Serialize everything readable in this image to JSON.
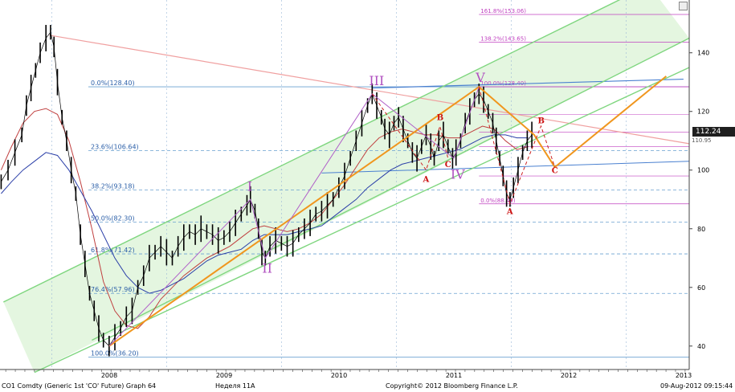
{
  "chart_data": {
    "type": "line",
    "title": "",
    "xlabel": "",
    "ylabel": "",
    "ylim": [
      32,
      158
    ],
    "xlim": [
      2007.55,
      2013.55
    ],
    "y_ticks": [
      40,
      60,
      80,
      100,
      120,
      140
    ],
    "x_tick_labels": [
      {
        "label": "2008",
        "x": 2008.0
      },
      {
        "label": "2009",
        "x": 2009.0
      },
      {
        "label": "2010",
        "x": 2010.0
      },
      {
        "label": "2011",
        "x": 2011.0
      },
      {
        "label": "2012",
        "x": 2012.0
      },
      {
        "label": "2013",
        "x": 2013.0
      }
    ],
    "price_series": [
      [
        2007.56,
        96
      ],
      [
        2007.62,
        100
      ],
      [
        2007.68,
        106
      ],
      [
        2007.74,
        112
      ],
      [
        2007.78,
        122
      ],
      [
        2007.82,
        128
      ],
      [
        2007.86,
        134
      ],
      [
        2007.9,
        140
      ],
      [
        2007.95,
        145
      ],
      [
        2007.99,
        147
      ],
      [
        2008.02,
        142
      ],
      [
        2008.05,
        130
      ],
      [
        2008.09,
        118
      ],
      [
        2008.13,
        110
      ],
      [
        2008.17,
        100
      ],
      [
        2008.21,
        92
      ],
      [
        2008.25,
        78
      ],
      [
        2008.29,
        68
      ],
      [
        2008.33,
        58
      ],
      [
        2008.37,
        52
      ],
      [
        2008.41,
        46
      ],
      [
        2008.45,
        42
      ],
      [
        2008.5,
        40
      ],
      [
        2008.55,
        43
      ],
      [
        2008.6,
        46
      ],
      [
        2008.65,
        50
      ],
      [
        2008.7,
        52
      ],
      [
        2008.75,
        60
      ],
      [
        2008.8,
        64
      ],
      [
        2008.85,
        70
      ],
      [
        2008.9,
        72
      ],
      [
        2008.95,
        74
      ],
      [
        2009.0,
        72
      ],
      [
        2009.05,
        70
      ],
      [
        2009.1,
        74
      ],
      [
        2009.15,
        77
      ],
      [
        2009.2,
        79
      ],
      [
        2009.25,
        78
      ],
      [
        2009.3,
        80
      ],
      [
        2009.35,
        79
      ],
      [
        2009.4,
        78
      ],
      [
        2009.45,
        76
      ],
      [
        2009.5,
        77
      ],
      [
        2009.55,
        79
      ],
      [
        2009.6,
        82
      ],
      [
        2009.65,
        85
      ],
      [
        2009.7,
        88
      ],
      [
        2009.73,
        90
      ],
      [
        2009.77,
        86
      ],
      [
        2009.8,
        80
      ],
      [
        2009.83,
        72
      ],
      [
        2009.86,
        70
      ],
      [
        2009.9,
        74
      ],
      [
        2009.95,
        76
      ],
      [
        2010.0,
        75
      ],
      [
        2010.05,
        74
      ],
      [
        2010.1,
        75
      ],
      [
        2010.15,
        78
      ],
      [
        2010.2,
        80
      ],
      [
        2010.25,
        82
      ],
      [
        2010.3,
        85
      ],
      [
        2010.35,
        86
      ],
      [
        2010.4,
        88
      ],
      [
        2010.45,
        90
      ],
      [
        2010.5,
        94
      ],
      [
        2010.55,
        98
      ],
      [
        2010.6,
        104
      ],
      [
        2010.65,
        110
      ],
      [
        2010.7,
        116
      ],
      [
        2010.75,
        122
      ],
      [
        2010.79,
        126
      ],
      [
        2010.83,
        122
      ],
      [
        2010.87,
        118
      ],
      [
        2010.9,
        114
      ],
      [
        2010.94,
        112
      ],
      [
        2010.98,
        116
      ],
      [
        2011.02,
        118
      ],
      [
        2011.06,
        114
      ],
      [
        2011.1,
        110
      ],
      [
        2011.14,
        106
      ],
      [
        2011.18,
        104
      ],
      [
        2011.22,
        108
      ],
      [
        2011.26,
        112
      ],
      [
        2011.3,
        108
      ],
      [
        2011.33,
        104
      ],
      [
        2011.37,
        110
      ],
      [
        2011.41,
        112
      ],
      [
        2011.45,
        108
      ],
      [
        2011.49,
        104
      ],
      [
        2011.52,
        106
      ],
      [
        2011.56,
        110
      ],
      [
        2011.6,
        116
      ],
      [
        2011.64,
        120
      ],
      [
        2011.68,
        124
      ],
      [
        2011.72,
        126
      ],
      [
        2011.76,
        124
      ],
      [
        2011.8,
        120
      ],
      [
        2011.84,
        116
      ],
      [
        2011.87,
        110
      ],
      [
        2011.9,
        104
      ],
      [
        2011.93,
        98
      ],
      [
        2011.96,
        92
      ],
      [
        2011.99,
        90
      ],
      [
        2012.02,
        94
      ],
      [
        2012.06,
        100
      ],
      [
        2012.1,
        106
      ],
      [
        2012.14,
        110
      ],
      [
        2012.18,
        112
      ]
    ],
    "ma_red": [
      [
        2007.56,
        100
      ],
      [
        2007.65,
        108
      ],
      [
        2007.75,
        116
      ],
      [
        2007.85,
        120
      ],
      [
        2007.95,
        121
      ],
      [
        2008.05,
        119
      ],
      [
        2008.15,
        110
      ],
      [
        2008.25,
        96
      ],
      [
        2008.35,
        80
      ],
      [
        2008.45,
        62
      ],
      [
        2008.55,
        52
      ],
      [
        2008.65,
        47
      ],
      [
        2008.75,
        46
      ],
      [
        2008.85,
        50
      ],
      [
        2008.95,
        56
      ],
      [
        2009.05,
        60
      ],
      [
        2009.15,
        64
      ],
      [
        2009.25,
        67
      ],
      [
        2009.35,
        70
      ],
      [
        2009.45,
        72
      ],
      [
        2009.55,
        74
      ],
      [
        2009.65,
        77
      ],
      [
        2009.75,
        80
      ],
      [
        2009.85,
        81
      ],
      [
        2009.95,
        80
      ],
      [
        2010.05,
        79
      ],
      [
        2010.15,
        80
      ],
      [
        2010.25,
        82
      ],
      [
        2010.35,
        85
      ],
      [
        2010.45,
        90
      ],
      [
        2010.55,
        95
      ],
      [
        2010.65,
        101
      ],
      [
        2010.75,
        107
      ],
      [
        2010.85,
        111
      ],
      [
        2010.95,
        113
      ],
      [
        2011.05,
        114
      ],
      [
        2011.15,
        113
      ],
      [
        2011.25,
        112
      ],
      [
        2011.35,
        112
      ],
      [
        2011.45,
        111
      ],
      [
        2011.55,
        111
      ],
      [
        2011.65,
        113
      ],
      [
        2011.75,
        115
      ],
      [
        2011.85,
        114
      ],
      [
        2011.95,
        110
      ],
      [
        2012.05,
        107
      ],
      [
        2012.15,
        108
      ]
    ],
    "ma_blue": [
      [
        2007.56,
        92
      ],
      [
        2007.65,
        96
      ],
      [
        2007.75,
        100
      ],
      [
        2007.85,
        103
      ],
      [
        2007.95,
        106
      ],
      [
        2008.05,
        105
      ],
      [
        2008.15,
        100
      ],
      [
        2008.25,
        93
      ],
      [
        2008.35,
        86
      ],
      [
        2008.45,
        78
      ],
      [
        2008.55,
        70
      ],
      [
        2008.65,
        64
      ],
      [
        2008.75,
        60
      ],
      [
        2008.85,
        58
      ],
      [
        2008.95,
        59
      ],
      [
        2009.05,
        61
      ],
      [
        2009.15,
        63
      ],
      [
        2009.25,
        66
      ],
      [
        2009.35,
        69
      ],
      [
        2009.45,
        71
      ],
      [
        2009.55,
        72
      ],
      [
        2009.65,
        73
      ],
      [
        2009.75,
        76
      ],
      [
        2009.85,
        78
      ],
      [
        2009.95,
        78
      ],
      [
        2010.05,
        78
      ],
      [
        2010.15,
        79
      ],
      [
        2010.25,
        80
      ],
      [
        2010.35,
        81
      ],
      [
        2010.45,
        84
      ],
      [
        2010.55,
        87
      ],
      [
        2010.65,
        90
      ],
      [
        2010.75,
        94
      ],
      [
        2010.85,
        97
      ],
      [
        2010.95,
        100
      ],
      [
        2011.05,
        102
      ],
      [
        2011.15,
        103
      ],
      [
        2011.25,
        104
      ],
      [
        2011.35,
        105
      ],
      [
        2011.45,
        106
      ],
      [
        2011.55,
        107
      ],
      [
        2011.65,
        109
      ],
      [
        2011.75,
        111
      ],
      [
        2011.85,
        112
      ],
      [
        2011.95,
        112
      ],
      [
        2012.05,
        111
      ],
      [
        2012.15,
        111
      ]
    ],
    "fib_levels_left": [
      {
        "label": "0.0%(128.40)",
        "value": 128.4
      },
      {
        "label": "23.6%(106.64)",
        "value": 106.64
      },
      {
        "label": "38.2%(93.18)",
        "value": 93.18
      },
      {
        "label": "50.0%(82.30)",
        "value": 82.3
      },
      {
        "label": "61.8%(71.42)",
        "value": 71.42
      },
      {
        "label": "76.4%(57.96)",
        "value": 57.96
      },
      {
        "label": "100.0%(36.20)",
        "value": 36.2
      }
    ],
    "fib_levels_right": [
      {
        "label": "161.8%(153.06)",
        "value": 153.06
      },
      {
        "label": "138.2%(143.65)",
        "value": 143.65
      },
      {
        "label": "100.0%(128.40)",
        "value": 128.4
      },
      {
        "label": "0.0%(88.49)",
        "value": 88.49
      }
    ],
    "wave_labels": [
      {
        "label": "I",
        "x": 2009.73,
        "y": 93,
        "color": "#b050c0"
      },
      {
        "label": "II",
        "x": 2009.86,
        "y": 65,
        "color": "#b050c0"
      },
      {
        "label": "III",
        "x": 2010.79,
        "y": 129,
        "color": "#b050c0"
      },
      {
        "label": "IV",
        "x": 2011.5,
        "y": 97,
        "color": "#b050c0"
      },
      {
        "label": "V",
        "x": 2011.72,
        "y": 130,
        "color": "#b050c0"
      },
      {
        "label": "A",
        "x": 2011.26,
        "y": 96,
        "color": "#cc1111"
      },
      {
        "label": "B",
        "x": 2011.38,
        "y": 117,
        "color": "#cc1111"
      },
      {
        "label": "C",
        "x": 2011.45,
        "y": 101,
        "color": "#cc1111"
      },
      {
        "label": "A",
        "x": 2011.99,
        "y": 85,
        "color": "#cc1111"
      },
      {
        "label": "B",
        "x": 2012.26,
        "y": 116,
        "color": "#cc1111"
      },
      {
        "label": "C",
        "x": 2012.38,
        "y": 99,
        "color": "#cc1111"
      }
    ],
    "current_price": "112.24",
    "price_marker_value": "110.95",
    "colors": {
      "price": "#000000",
      "ma_red": "#c04040",
      "ma_blue": "#2b3fa8",
      "trend": "#f0961e",
      "channel": "#7fd67f",
      "fib": "#c040c0",
      "grid": "#6aa0d0",
      "resistance": "#f0a0a0"
    }
  },
  "footer": {
    "left": "CO1 Comdty (Generic 1st 'CO' Future) Graph 64",
    "middle": "Неделя 11А",
    "copyright": "Copyright© 2012 Bloomberg Finance L.P.",
    "timestamp": "09-Aug-2012 09:15:44"
  }
}
